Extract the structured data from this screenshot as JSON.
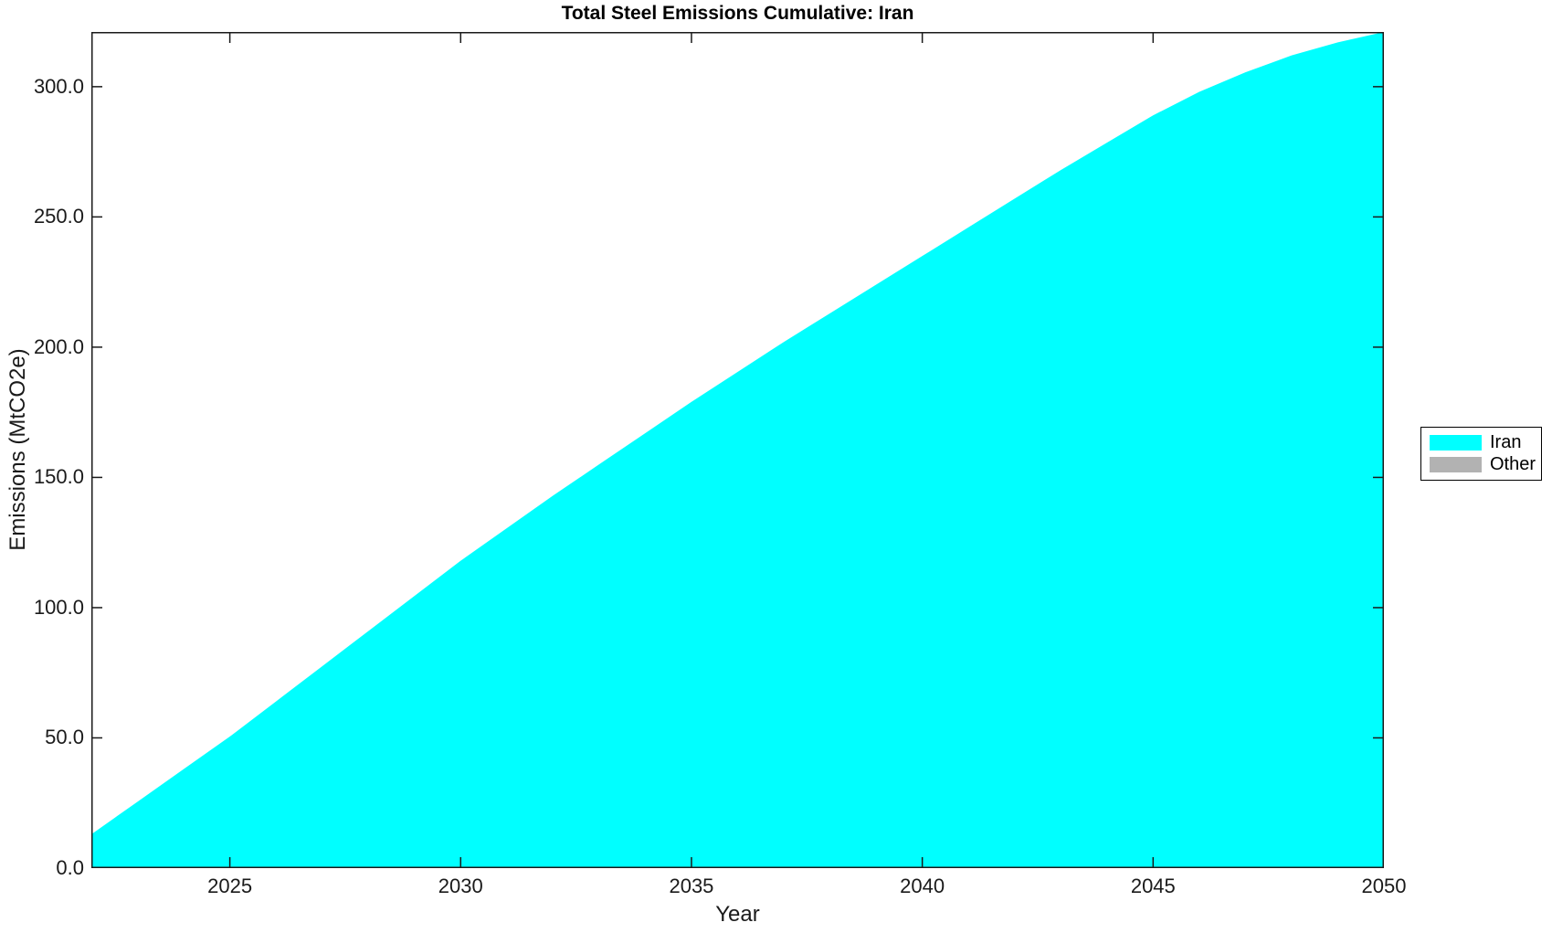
{
  "chart_data": {
    "type": "area",
    "title": "Total Steel Emissions Cumulative: Iran",
    "xlabel": "Year",
    "ylabel": "Emissions (MtCO2e)",
    "xlim": [
      2022,
      2050
    ],
    "ylim": [
      0,
      321
    ],
    "grid": false,
    "legend_position": "outside-right",
    "x": [
      2022,
      2023,
      2024,
      2025,
      2026,
      2027,
      2028,
      2029,
      2030,
      2031,
      2032,
      2033,
      2034,
      2035,
      2036,
      2037,
      2038,
      2039,
      2040,
      2041,
      2042,
      2043,
      2044,
      2045,
      2046,
      2047,
      2048,
      2049,
      2050
    ],
    "series": [
      {
        "name": "Iran",
        "color": "#00FFFF",
        "values": [
          13,
          25.5,
          38,
          50.5,
          64,
          77.5,
          91,
          104.5,
          118,
          130.5,
          143,
          155,
          167,
          179,
          190.5,
          202,
          213,
          224,
          235,
          246,
          257,
          268,
          278.5,
          289,
          298,
          305.5,
          312,
          317,
          321
        ]
      },
      {
        "name": "Other",
        "color": "#B2B2B2",
        "values": [
          0,
          0,
          0,
          0,
          0,
          0,
          0,
          0,
          0,
          0,
          0,
          0,
          0,
          0,
          0,
          0,
          0,
          0,
          0,
          0,
          0,
          0,
          0,
          0,
          0,
          0,
          0,
          0,
          0
        ]
      }
    ],
    "xticks": {
      "values": [
        2025,
        2030,
        2035,
        2040,
        2045,
        2050
      ],
      "labels": [
        "2025",
        "2030",
        "2035",
        "2040",
        "2045",
        "2050"
      ]
    },
    "yticks": {
      "values": [
        0,
        50,
        100,
        150,
        200,
        250,
        300
      ],
      "labels": [
        "0.0",
        "50.0",
        "100.0",
        "150.0",
        "200.0",
        "250.0",
        "300.0"
      ]
    },
    "axis_color": "#1a1a1a",
    "background_color": "#ffffff"
  }
}
